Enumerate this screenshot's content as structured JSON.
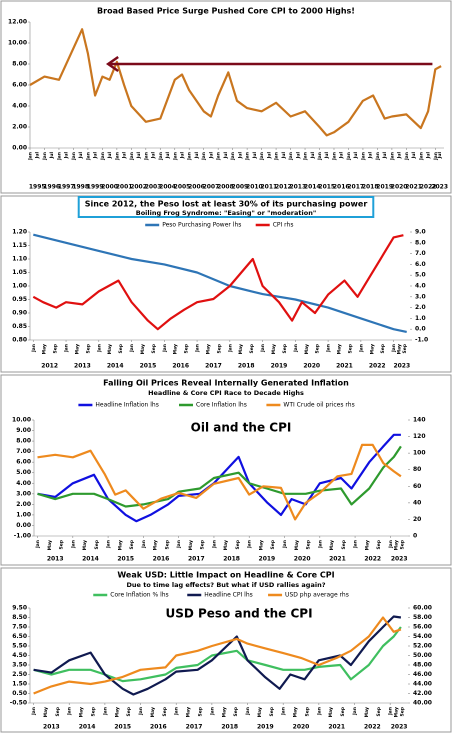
{
  "chart_data": [
    {
      "type": "line",
      "title": "Broad Based Price Surge Pushed Core CPI to 2000 Highs!",
      "xlim": [
        1995,
        2023.6
      ],
      "xticks": [
        1995,
        1996,
        1997,
        1998,
        1999,
        2000,
        2001,
        2002,
        2003,
        2004,
        2005,
        2006,
        2007,
        2008,
        2009,
        2010,
        2011,
        2012,
        2013,
        2014,
        2015,
        2016,
        2017,
        2018,
        2019,
        2020,
        2021,
        2022,
        2023
      ],
      "month_ticks": [
        "Jan",
        "Jul"
      ],
      "ylim": [
        0,
        12
      ],
      "yticks": [
        {
          "value": 0,
          "label": "0.00"
        },
        {
          "value": 2,
          "label": "2.00"
        },
        {
          "value": 4,
          "label": "4.00"
        },
        {
          "value": 6,
          "label": "6.00"
        },
        {
          "value": 8,
          "label": "8.00"
        },
        {
          "value": 10,
          "label": "10.00"
        },
        {
          "value": 12,
          "label": "12.00"
        }
      ],
      "reference_arrow": {
        "y": 8,
        "x_start": 2022.8,
        "x_end": 2000.4,
        "color": "#7b0a1a"
      },
      "series": [
        {
          "color": "#c9761f",
          "x": [
            1995,
            1996,
            1997,
            1998,
            1998.6,
            1999,
            1999.5,
            2000,
            2000.5,
            2001,
            2001.5,
            2002,
            2003,
            2004,
            2005,
            2005.5,
            2006,
            2007,
            2007.5,
            2008,
            2008.7,
            2009.3,
            2010,
            2011,
            2012,
            2013,
            2014,
            2015,
            2015.5,
            2016,
            2017,
            2018,
            2018.7,
            2019.5,
            2020,
            2021,
            2022,
            2022.5,
            2023,
            2023.4
          ],
          "values": [
            6.0,
            6.8,
            6.5,
            9.5,
            11.3,
            9.0,
            5.0,
            6.8,
            6.5,
            8.2,
            6.0,
            4.0,
            2.5,
            2.8,
            6.5,
            7.0,
            5.5,
            3.5,
            3.0,
            5.0,
            7.2,
            4.5,
            3.8,
            3.5,
            4.3,
            3.0,
            3.5,
            2.0,
            1.2,
            1.5,
            2.5,
            4.5,
            5.0,
            2.8,
            3.0,
            3.2,
            1.9,
            3.5,
            7.5,
            7.8
          ]
        }
      ]
    },
    {
      "type": "line",
      "title": "Since 2012, the Peso lost at least 30% of its purchasing power",
      "subtitle": "Boiling Frog Syndrome: \"Easing\" or \"moderation\"",
      "xlim": [
        2011.9,
        2023.5
      ],
      "xticks": [
        2012,
        2013,
        2014,
        2015,
        2016,
        2017,
        2018,
        2019,
        2020,
        2021,
        2022,
        2023
      ],
      "month_ticks": [
        "Jan",
        "May",
        "Sep"
      ],
      "ylim": [
        0.8,
        1.2
      ],
      "yticks": [
        {
          "value": 0.8,
          "label": "0.80"
        },
        {
          "value": 0.85,
          "label": "0.85"
        },
        {
          "value": 0.9,
          "label": "0.90"
        },
        {
          "value": 0.95,
          "label": "0.95"
        },
        {
          "value": 1,
          "label": "1.00"
        },
        {
          "value": 1.05,
          "label": "1.05"
        },
        {
          "value": 1.1,
          "label": "1.10"
        },
        {
          "value": 1.15,
          "label": "1.15"
        },
        {
          "value": 1.2,
          "label": "1.20"
        }
      ],
      "y2lim": [
        -1,
        9
      ],
      "y2ticks": [
        {
          "value": -1,
          "label": "-1.0"
        },
        {
          "value": 0,
          "label": "0.0"
        },
        {
          "value": 1,
          "label": "1.0"
        },
        {
          "value": 2,
          "label": "2.0"
        },
        {
          "value": 3,
          "label": "3.0"
        },
        {
          "value": 4,
          "label": "4.0"
        },
        {
          "value": 5,
          "label": "5.0"
        },
        {
          "value": 6,
          "label": "6.0"
        },
        {
          "value": 7,
          "label": "7.0"
        },
        {
          "value": 8,
          "label": "8.0"
        },
        {
          "value": 9,
          "label": "9.0"
        }
      ],
      "series": [
        {
          "name": "Peso Purchasing Power lhs",
          "color": "#2e75b6",
          "x": [
            2012,
            2013,
            2014,
            2015,
            2016,
            2017,
            2018,
            2019,
            2020,
            2021,
            2022,
            2023,
            2023.4
          ],
          "values": [
            1.19,
            1.16,
            1.13,
            1.1,
            1.08,
            1.05,
            1.0,
            0.97,
            0.95,
            0.92,
            0.88,
            0.84,
            0.83
          ]
        },
        {
          "name": "CPI rhs",
          "color": "#e01010",
          "axis": "y2",
          "x": [
            2012,
            2012.3,
            2012.7,
            2013,
            2013.5,
            2014,
            2014.6,
            2015,
            2015.5,
            2015.8,
            2016.2,
            2016.6,
            2017,
            2017.5,
            2018,
            2018.7,
            2019,
            2019.5,
            2019.9,
            2020.2,
            2020.6,
            2021,
            2021.5,
            2021.9,
            2022.3,
            2022.7,
            2023,
            2023.3
          ],
          "values": [
            3.0,
            2.5,
            2.0,
            2.5,
            2.3,
            3.5,
            4.5,
            2.5,
            0.8,
            0.0,
            1.0,
            1.8,
            2.5,
            2.8,
            4.0,
            6.5,
            4.0,
            2.5,
            0.8,
            2.5,
            1.5,
            3.2,
            4.5,
            3.0,
            5.0,
            7.0,
            8.5,
            8.7
          ]
        }
      ]
    },
    {
      "type": "line",
      "title": "Falling Oil Prices Reveal Internally Generated Inflation",
      "subtitle": "Headline & Core CPI Race to Decade Highs",
      "annotation": "Oil and the CPI",
      "xlim": [
        2012.9,
        2023.5
      ],
      "xticks": [
        2013,
        2014,
        2015,
        2016,
        2017,
        2018,
        2019,
        2020,
        2021,
        2022,
        2023
      ],
      "month_ticks": [
        "Jan",
        "May",
        "Sep"
      ],
      "ylim": [
        -1,
        10
      ],
      "yticks": [
        {
          "value": -1,
          "label": "-1.00"
        },
        {
          "value": 0,
          "label": "0.00"
        },
        {
          "value": 1,
          "label": "1.00"
        },
        {
          "value": 2,
          "label": "2.00"
        },
        {
          "value": 3,
          "label": "3.00"
        },
        {
          "value": 4,
          "label": "4.00"
        },
        {
          "value": 5,
          "label": "5.00"
        },
        {
          "value": 6,
          "label": "6.00"
        },
        {
          "value": 7,
          "label": "7.00"
        },
        {
          "value": 8,
          "label": "8.00"
        },
        {
          "value": 9,
          "label": "9.00"
        },
        {
          "value": 10,
          "label": "10.00"
        }
      ],
      "y2lim": [
        0,
        140
      ],
      "y2ticks": [
        0,
        20,
        40,
        60,
        80,
        100,
        120,
        140
      ],
      "series": [
        {
          "name": "Headline Inflation lhs",
          "color": "#1010e0",
          "x": [
            2013,
            2013.5,
            2014,
            2014.6,
            2015,
            2015.5,
            2015.8,
            2016.2,
            2016.7,
            2017,
            2017.6,
            2018,
            2018.7,
            2019,
            2019.5,
            2019.9,
            2020.2,
            2020.6,
            2021,
            2021.6,
            2021.9,
            2022.4,
            2022.8,
            2023.1,
            2023.3
          ],
          "values": [
            3.0,
            2.7,
            4.0,
            4.8,
            2.5,
            1.0,
            0.4,
            1.0,
            2.0,
            2.8,
            3.0,
            4.0,
            6.5,
            4.0,
            2.2,
            1.0,
            2.5,
            2.0,
            4.0,
            4.5,
            3.5,
            6.0,
            7.5,
            8.6,
            8.6
          ]
        },
        {
          "name": "Core Inflation lhs",
          "color": "#2e9a2e",
          "x": [
            2013,
            2013.5,
            2014,
            2014.6,
            2015,
            2015.5,
            2016,
            2016.7,
            2017,
            2017.6,
            2018,
            2018.7,
            2019,
            2019.5,
            2020,
            2020.6,
            2021,
            2021.6,
            2021.9,
            2022.4,
            2022.8,
            2023.1,
            2023.3
          ],
          "values": [
            3.0,
            2.5,
            3.0,
            3.0,
            2.5,
            1.8,
            2.0,
            2.5,
            3.2,
            3.5,
            4.5,
            5.0,
            4.0,
            3.5,
            3.0,
            3.0,
            3.3,
            3.5,
            2.0,
            3.5,
            5.5,
            6.5,
            7.5
          ]
        },
        {
          "name": "WTI Crude oil prices rhs",
          "color": "#ee8a1e",
          "axis": "y2",
          "x": [
            2013,
            2013.5,
            2014,
            2014.5,
            2014.9,
            2015.2,
            2015.5,
            2016,
            2016.5,
            2017,
            2017.5,
            2018,
            2018.7,
            2019,
            2019.4,
            2019.9,
            2020.3,
            2020.6,
            2021,
            2021.5,
            2021.9,
            2022.2,
            2022.5,
            2022.8,
            2023.1,
            2023.3
          ],
          "values": [
            95,
            98,
            95,
            103,
            75,
            50,
            55,
            33,
            45,
            52,
            46,
            63,
            70,
            50,
            60,
            58,
            20,
            40,
            52,
            72,
            75,
            110,
            110,
            88,
            78,
            72
          ]
        }
      ]
    },
    {
      "type": "line",
      "title": "Weak USD: Little Impact on Headline & Core CPI",
      "subtitle": "Due to time lag effects? But what if USD rallies again?",
      "annotation": "USD Peso and the CPI",
      "xlim": [
        2012.9,
        2023.5
      ],
      "xticks": [
        2013,
        2014,
        2015,
        2016,
        2017,
        2018,
        2019,
        2020,
        2021,
        2022,
        2023
      ],
      "month_ticks": [
        "Jan",
        "May",
        "Sep"
      ],
      "ylim": [
        -0.5,
        9.5
      ],
      "yticks": [
        {
          "value": -0.5,
          "label": "-0.50"
        },
        {
          "value": 0.5,
          "label": "0.50"
        },
        {
          "value": 1.5,
          "label": "1.50"
        },
        {
          "value": 2.5,
          "label": "2.50"
        },
        {
          "value": 3.5,
          "label": "3.50"
        },
        {
          "value": 4.5,
          "label": "4.50"
        },
        {
          "value": 5.5,
          "label": "5.50"
        },
        {
          "value": 6.5,
          "label": "6.50"
        },
        {
          "value": 7.5,
          "label": "7.50"
        },
        {
          "value": 8.5,
          "label": "8.50"
        },
        {
          "value": 9.5,
          "label": "9.50"
        }
      ],
      "y2lim": [
        40,
        60
      ],
      "y2ticks": [
        {
          "value": 40,
          "label": "40.00"
        },
        {
          "value": 42,
          "label": "42.00"
        },
        {
          "value": 44,
          "label": "44.00"
        },
        {
          "value": 46,
          "label": "46.00"
        },
        {
          "value": 48,
          "label": "48.00"
        },
        {
          "value": 50,
          "label": "50.00"
        },
        {
          "value": 52,
          "label": "52.00"
        },
        {
          "value": 54,
          "label": "54.00"
        },
        {
          "value": 56,
          "label": "56.00"
        },
        {
          "value": 58,
          "label": "58.00"
        },
        {
          "value": 60,
          "label": "60.00"
        }
      ],
      "series": [
        {
          "name": "Core Inflation % lhs",
          "color": "#3fbf5f",
          "x": [
            2013,
            2013.5,
            2014,
            2014.6,
            2015,
            2015.5,
            2016,
            2016.7,
            2017,
            2017.6,
            2018,
            2018.7,
            2019,
            2019.5,
            2020,
            2020.6,
            2021,
            2021.6,
            2021.9,
            2022.4,
            2022.8,
            2023.1,
            2023.3
          ],
          "values": [
            3.0,
            2.5,
            3.0,
            3.0,
            2.5,
            1.8,
            2.0,
            2.5,
            3.2,
            3.5,
            4.5,
            5.0,
            4.0,
            3.5,
            3.0,
            3.0,
            3.3,
            3.5,
            2.0,
            3.5,
            5.5,
            6.5,
            7.5
          ]
        },
        {
          "name": "Headline CPI lhs",
          "color": "#101a50",
          "x": [
            2013,
            2013.5,
            2014,
            2014.6,
            2015,
            2015.5,
            2015.8,
            2016.2,
            2016.7,
            2017,
            2017.6,
            2018,
            2018.7,
            2019,
            2019.5,
            2019.9,
            2020.2,
            2020.6,
            2021,
            2021.6,
            2021.9,
            2022.4,
            2022.8,
            2023.1,
            2023.3
          ],
          "values": [
            3.0,
            2.7,
            4.0,
            4.8,
            2.5,
            1.0,
            0.4,
            1.0,
            2.0,
            2.8,
            3.0,
            4.0,
            6.5,
            4.0,
            2.2,
            1.0,
            2.5,
            2.0,
            4.0,
            4.5,
            3.5,
            6.0,
            7.5,
            8.6,
            8.5
          ]
        },
        {
          "name": "USD php average rhs",
          "color": "#ee8a1e",
          "axis": "y2",
          "x": [
            2013,
            2013.5,
            2014,
            2014.6,
            2015,
            2015.5,
            2016,
            2016.7,
            2017,
            2017.6,
            2018,
            2018.7,
            2019,
            2019.5,
            2020,
            2020.5,
            2021,
            2021.5,
            2021.9,
            2022.4,
            2022.8,
            2023.1,
            2023.3
          ],
          "values": [
            42,
            43.5,
            44.5,
            44,
            44.5,
            45.5,
            47,
            47.5,
            50,
            51,
            52,
            53.5,
            52.5,
            51.5,
            50.5,
            49.5,
            48,
            49.5,
            51,
            54,
            58,
            55,
            55.5
          ]
        }
      ]
    }
  ]
}
